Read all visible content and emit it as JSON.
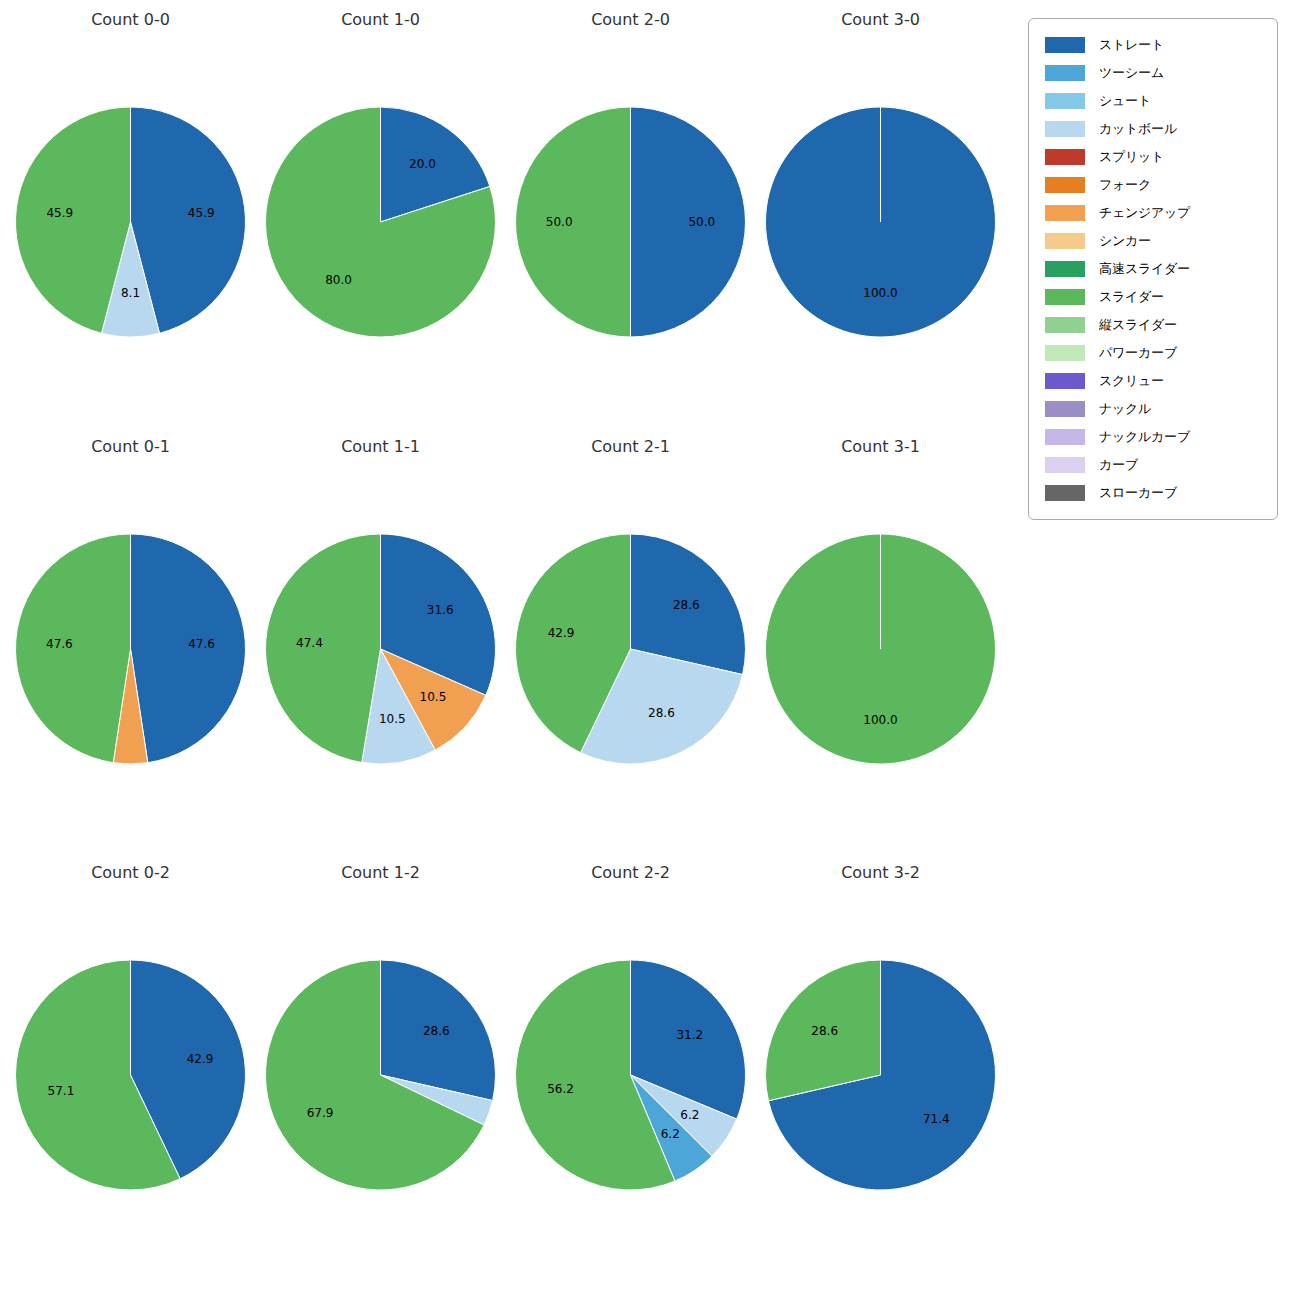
{
  "chart_data": [
    {
      "type": "pie",
      "title": "Count 0-0",
      "categories": [
        "ストレート",
        "カットボール",
        "スライダー"
      ],
      "values": [
        45.9,
        8.1,
        45.9
      ],
      "colors": [
        "#2068ae",
        "#b8d8f0",
        "#5cb85c"
      ],
      "data_labels": true,
      "value_labels": [
        "45.9",
        "8.1",
        "45.9"
      ]
    },
    {
      "type": "pie",
      "title": "Count 1-0",
      "categories": [
        "ストレート",
        "スライダー"
      ],
      "values": [
        20.0,
        80.0
      ],
      "colors": [
        "#2068ae",
        "#5cb85c"
      ],
      "data_labels": true,
      "value_labels": [
        "20.0",
        "80.0"
      ]
    },
    {
      "type": "pie",
      "title": "Count 2-0",
      "categories": [
        "ストレート",
        "スライダー"
      ],
      "values": [
        50.0,
        50.0
      ],
      "colors": [
        "#2068ae",
        "#5cb85c"
      ],
      "data_labels": true,
      "value_labels": [
        "50.0",
        "50.0"
      ]
    },
    {
      "type": "pie",
      "title": "Count 3-0",
      "categories": [
        "ストレート"
      ],
      "values": [
        100.0
      ],
      "colors": [
        "#2068ae"
      ],
      "data_labels": true,
      "value_labels": [
        "100.0"
      ]
    },
    {
      "type": "pie",
      "title": "Count 0-1",
      "categories": [
        "ストレート",
        "チェンジアップ",
        "スライダー"
      ],
      "values": [
        47.6,
        4.8,
        47.6
      ],
      "colors": [
        "#2068ae",
        "#f0a050",
        "#5cb85c"
      ],
      "data_labels": true,
      "value_labels": [
        "47.6",
        null,
        "47.6"
      ]
    },
    {
      "type": "pie",
      "title": "Count 1-1",
      "categories": [
        "ストレート",
        "チェンジアップ",
        "カットボール",
        "スライダー"
      ],
      "values": [
        31.6,
        10.5,
        10.5,
        47.4
      ],
      "colors": [
        "#2068ae",
        "#f0a050",
        "#b8d8f0",
        "#5cb85c"
      ],
      "data_labels": true,
      "value_labels": [
        "31.6",
        "10.5",
        "10.5",
        "47.4"
      ]
    },
    {
      "type": "pie",
      "title": "Count 2-1",
      "categories": [
        "ストレート",
        "カットボール",
        "スライダー"
      ],
      "values": [
        28.6,
        28.6,
        42.9
      ],
      "colors": [
        "#2068ae",
        "#b8d8f0",
        "#5cb85c"
      ],
      "data_labels": true,
      "value_labels": [
        "28.6",
        "28.6",
        "42.9"
      ]
    },
    {
      "type": "pie",
      "title": "Count 3-1",
      "categories": [
        "スライダー"
      ],
      "values": [
        100.0
      ],
      "colors": [
        "#5cb85c"
      ],
      "data_labels": true,
      "value_labels": [
        "100.0"
      ]
    },
    {
      "type": "pie",
      "title": "Count 0-2",
      "categories": [
        "ストレート",
        "スライダー"
      ],
      "values": [
        42.9,
        57.1
      ],
      "colors": [
        "#2068ae",
        "#5cb85c"
      ],
      "data_labels": true,
      "value_labels": [
        "42.9",
        "57.1"
      ]
    },
    {
      "type": "pie",
      "title": "Count 1-2",
      "categories": [
        "ストレート",
        "カットボール",
        "スライダー"
      ],
      "values": [
        28.6,
        3.6,
        67.9
      ],
      "colors": [
        "#2068ae",
        "#b8d8f0",
        "#5cb85c"
      ],
      "data_labels": true,
      "value_labels": [
        "28.6",
        null,
        "67.9"
      ]
    },
    {
      "type": "pie",
      "title": "Count 2-2",
      "categories": [
        "ストレート",
        "カットボール",
        "ツーシーム",
        "スライダー"
      ],
      "values": [
        31.2,
        6.2,
        6.2,
        56.2
      ],
      "colors": [
        "#2068ae",
        "#b8d8f0",
        "#4da6d8",
        "#5cb85c"
      ],
      "data_labels": true,
      "value_labels": [
        "31.2",
        "6.2",
        "6.2",
        "56.2"
      ]
    },
    {
      "type": "pie",
      "title": "Count 3-2",
      "categories": [
        "ストレート",
        "スライダー"
      ],
      "values": [
        71.4,
        28.6
      ],
      "colors": [
        "#2068ae",
        "#5cb85c"
      ],
      "data_labels": true,
      "value_labels": [
        "71.4",
        "28.6"
      ]
    }
  ],
  "series": [
    {
      "name": "ストレート",
      "color": "#2068ae"
    },
    {
      "name": "ツーシーム",
      "color": "#4da6d8"
    },
    {
      "name": "シュート",
      "color": "#85c8e8"
    },
    {
      "name": "カットボール",
      "color": "#b8d8f0"
    },
    {
      "name": "スプリット",
      "color": "#c0392b"
    },
    {
      "name": "フォーク",
      "color": "#e67e22"
    },
    {
      "name": "チェンジアップ",
      "color": "#f0a050"
    },
    {
      "name": "シンカー",
      "color": "#f5ca8a"
    },
    {
      "name": "高速スライダー",
      "color": "#28a060"
    },
    {
      "name": "スライダー",
      "color": "#5cb85c"
    },
    {
      "name": "縦スライダー",
      "color": "#90d090"
    },
    {
      "name": "パワーカーブ",
      "color": "#c0e8b8"
    },
    {
      "name": "スクリュー",
      "color": "#6a5acd"
    },
    {
      "name": "ナックル",
      "color": "#9b8ec4"
    },
    {
      "name": "ナックルカーブ",
      "color": "#c5b8e8"
    },
    {
      "name": "カーブ",
      "color": "#dcd0f0"
    },
    {
      "name": "スローカーブ",
      "color": "#666666"
    }
  ],
  "legend": "upper right"
}
